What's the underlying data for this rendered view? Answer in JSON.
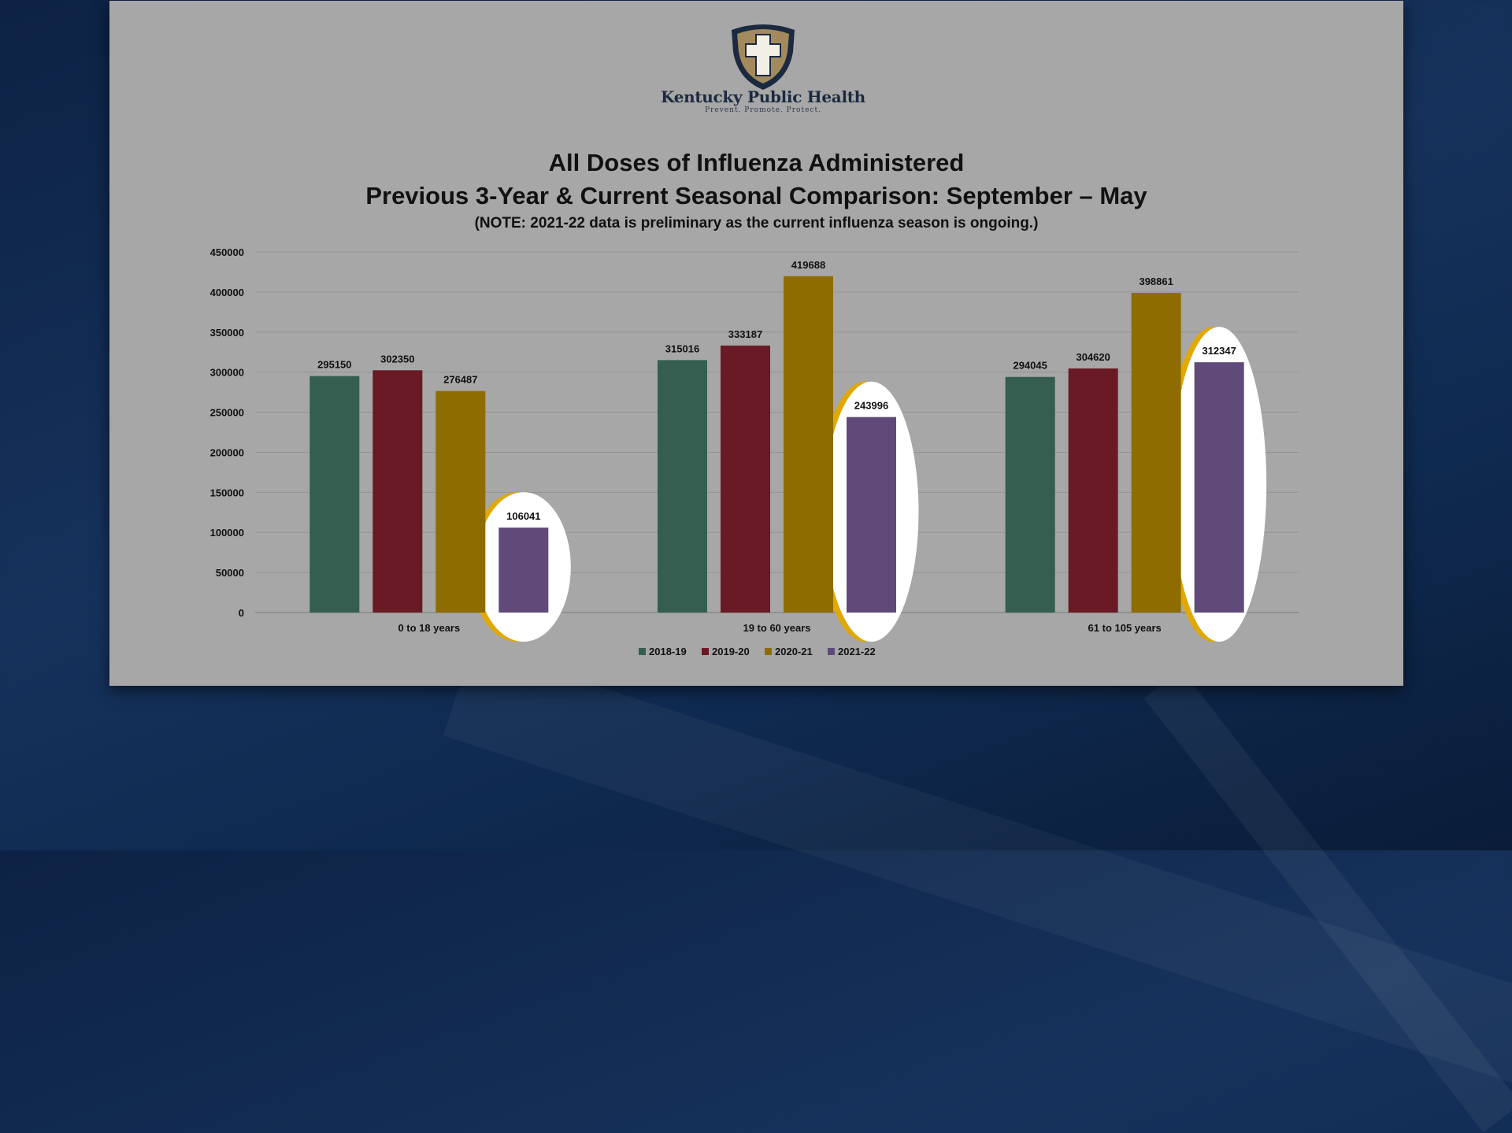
{
  "brand": {
    "name": "Kentucky Public Health",
    "tagline": "Prevent. Promote. Protect."
  },
  "chart_data": {
    "type": "bar",
    "title": "All Doses of Influenza Administered",
    "subtitle": "Previous 3-Year & Current Seasonal Comparison: September – May",
    "note": "(NOTE: 2021-22 data is preliminary as the current influenza season is ongoing.)",
    "categories": [
      "0 to 18 years",
      "19 to 60 years",
      "61 to 105 years"
    ],
    "series": [
      {
        "name": "2018-19",
        "color": "#355e51",
        "values": [
          295150,
          315016,
          294045
        ]
      },
      {
        "name": "2019-20",
        "color": "#6a1a24",
        "values": [
          302350,
          333187,
          304620
        ]
      },
      {
        "name": "2020-21",
        "color": "#8f6c00",
        "values": [
          276487,
          419688,
          398861
        ]
      },
      {
        "name": "2021-22",
        "color": "#604a79",
        "values": [
          106041,
          243996,
          312347
        ]
      }
    ],
    "ylim": [
      0,
      450000
    ],
    "yticks": [
      0,
      50000,
      100000,
      150000,
      200000,
      250000,
      300000,
      350000,
      400000,
      450000
    ],
    "grid": true,
    "legend_position": "bottom",
    "highlighted_series": "2021-22",
    "highlight_color": "#ffffff",
    "highlight_edge_color": "#e0a800"
  }
}
